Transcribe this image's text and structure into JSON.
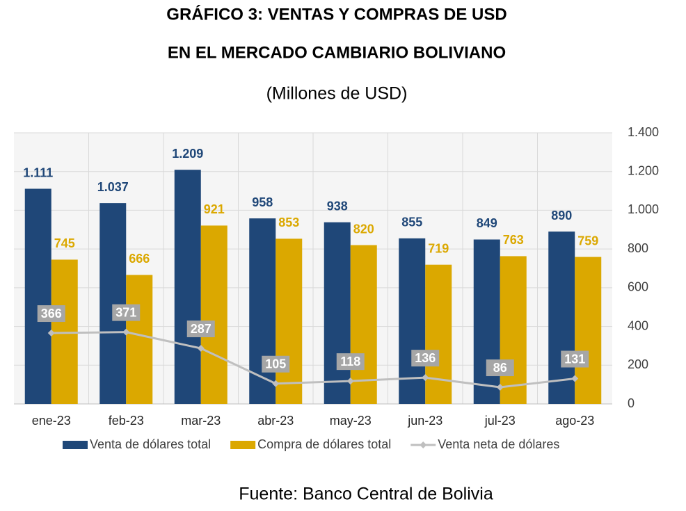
{
  "chart_data": {
    "type": "bar_line",
    "title": "GRÁFICO 3: VENTAS Y COMPRAS DE USD",
    "title2": "EN EL MERCADO CAMBIARIO BOLIVIANO",
    "subtitle": "(Millones de USD)",
    "source": "Fuente: Banco Central de Bolivia",
    "categories": [
      "ene-23",
      "feb-23",
      "mar-23",
      "abr-23",
      "may-23",
      "jun-23",
      "jul-23",
      "ago-23"
    ],
    "series": [
      {
        "name": "Venta de dólares total",
        "type": "bar",
        "color": "#1f4778",
        "values": [
          1111,
          1037,
          1209,
          958,
          938,
          855,
          849,
          890
        ],
        "value_labels": [
          "1.111",
          "1.037",
          "1.209",
          "958",
          "938",
          "855",
          "849",
          "890"
        ]
      },
      {
        "name": "Compra de dólares total",
        "type": "bar",
        "color": "#dba800",
        "values": [
          745,
          666,
          921,
          853,
          820,
          719,
          763,
          759
        ]
      },
      {
        "name": "Venta neta de dólares",
        "type": "line",
        "color": "#bfbfbf",
        "values": [
          366,
          371,
          287,
          105,
          118,
          136,
          86,
          131
        ]
      }
    ],
    "ylim": [
      0,
      1400
    ],
    "yticks": [
      0,
      200,
      400,
      600,
      800,
      {
        "value": 1000,
        "label": "1.000"
      },
      {
        "value": 1200,
        "label": "1.200"
      },
      {
        "value": 1400,
        "label": "1.400"
      }
    ],
    "grid": true,
    "legend": "bottom"
  }
}
